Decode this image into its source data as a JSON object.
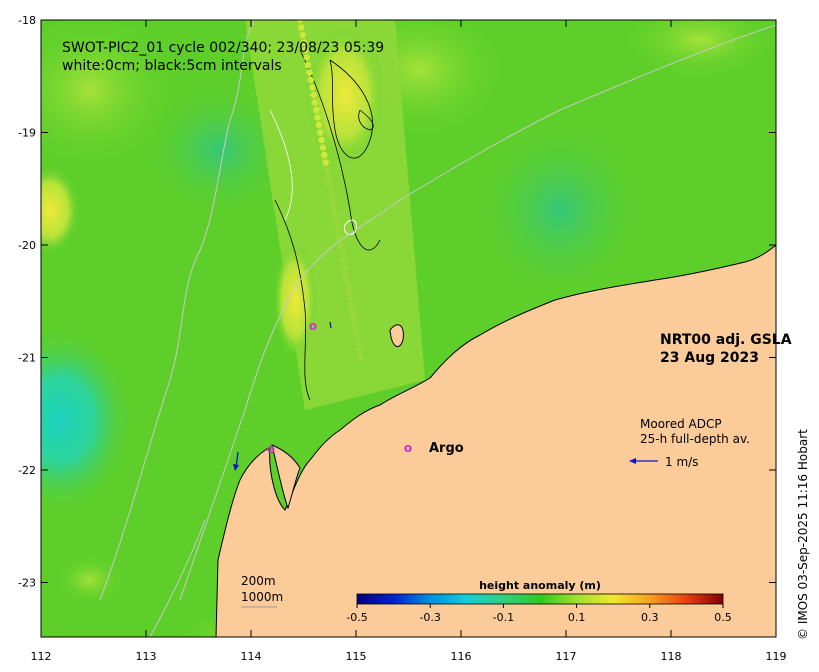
{
  "title_line1": "SWOT-PIC2_01 cycle 002/340; 23/08/23 05:39",
  "title_line2": "white:0cm; black:5cm intervals",
  "product_line1": "NRT00 adj. GSLA",
  "product_line2": "23 Aug 2023",
  "adcp_line1": "Moored ADCP",
  "adcp_line2": "25-h full-depth av.",
  "adcp_scale_label": "1 m/s",
  "argo_marker": "o",
  "argo_label": "Argo",
  "isobath_labels": [
    "200m",
    "1000m"
  ],
  "colorbar": {
    "title": "height anomaly (m)",
    "ticks": [
      "-0.5",
      "-0.3",
      "-0.1",
      "0.1",
      "0.3",
      "0.5"
    ],
    "range": [
      -0.5,
      0.5
    ]
  },
  "x_axis_ticks": [
    "112",
    "113",
    "114",
    "115",
    "116",
    "117",
    "118",
    "119"
  ],
  "y_axis_ticks": [
    "-18",
    "-19",
    "-20",
    "-21",
    "-22",
    "-23"
  ],
  "credit": "© IMOS 03-Sep-2025 11:16 Hobart",
  "colors": {
    "land": "#fbcb9a",
    "sea_base": "#5ecf2a",
    "argo": "#cc33cc",
    "adcp_arrow": "#1010cc"
  }
}
